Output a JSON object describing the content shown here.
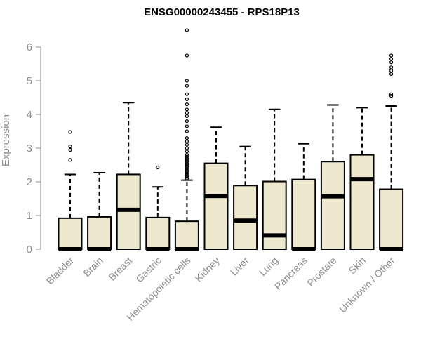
{
  "chart_data": {
    "type": "box",
    "title": "ENSG00000243455 - RPS18P13",
    "xlabel": "",
    "ylabel": "Expression",
    "ylim": [
      0,
      6.5
    ],
    "yticks": [
      0,
      1,
      2,
      3,
      4,
      5,
      6
    ],
    "box_fill": "#eee8cf",
    "categories": [
      "Bladder",
      "Brain",
      "Breast",
      "Gastric",
      "Hematopoietic cells",
      "Kidney",
      "Liver",
      "Lung",
      "Pancreas",
      "Prostate",
      "Skin",
      "Unknown / Other"
    ],
    "boxes": [
      {
        "q1": 0,
        "median": 0,
        "q3": 0.92,
        "whisker_low": 0,
        "whisker_high": 2.22,
        "outliers": [
          2.65,
          2.95,
          3.05,
          3.48
        ]
      },
      {
        "q1": 0,
        "median": 0,
        "q3": 0.96,
        "whisker_low": 0,
        "whisker_high": 2.27,
        "outliers": []
      },
      {
        "q1": 0,
        "median": 1.17,
        "q3": 2.22,
        "whisker_low": 0,
        "whisker_high": 4.35,
        "outliers": []
      },
      {
        "q1": 0,
        "median": 0,
        "q3": 0.94,
        "whisker_low": 0,
        "whisker_high": 1.85,
        "outliers": [
          2.43
        ]
      },
      {
        "q1": 0,
        "median": 0,
        "q3": 0.83,
        "whisker_low": 0,
        "whisker_high": 2.05,
        "outliers": [
          2.1,
          2.15,
          2.2,
          2.25,
          2.3,
          2.35,
          2.4,
          2.45,
          2.5,
          2.55,
          2.6,
          2.65,
          2.7,
          2.75,
          2.8,
          2.9,
          3.0,
          3.1,
          3.2,
          3.3,
          3.5,
          3.65,
          3.8,
          3.95,
          4.05,
          4.15,
          4.3,
          4.45,
          4.6,
          4.85,
          5.0,
          5.75,
          6.5
        ]
      },
      {
        "q1": 0,
        "median": 1.58,
        "q3": 2.55,
        "whisker_low": 0,
        "whisker_high": 3.62,
        "outliers": []
      },
      {
        "q1": 0,
        "median": 0.85,
        "q3": 1.89,
        "whisker_low": 0,
        "whisker_high": 3.05,
        "outliers": []
      },
      {
        "q1": 0,
        "median": 0.41,
        "q3": 2.01,
        "whisker_low": 0,
        "whisker_high": 4.15,
        "outliers": []
      },
      {
        "q1": 0,
        "median": 0,
        "q3": 2.07,
        "whisker_low": 0,
        "whisker_high": 3.13,
        "outliers": []
      },
      {
        "q1": 0,
        "median": 1.57,
        "q3": 2.6,
        "whisker_low": 0,
        "whisker_high": 4.28,
        "outliers": []
      },
      {
        "q1": 0,
        "median": 2.08,
        "q3": 2.8,
        "whisker_low": 0,
        "whisker_high": 4.2,
        "outliers": []
      },
      {
        "q1": 0,
        "median": 0,
        "q3": 1.78,
        "whisker_low": 0,
        "whisker_high": 4.25,
        "outliers": [
          4.55,
          4.6,
          5.2,
          5.3,
          5.4,
          5.55,
          5.65,
          5.75
        ]
      }
    ]
  }
}
